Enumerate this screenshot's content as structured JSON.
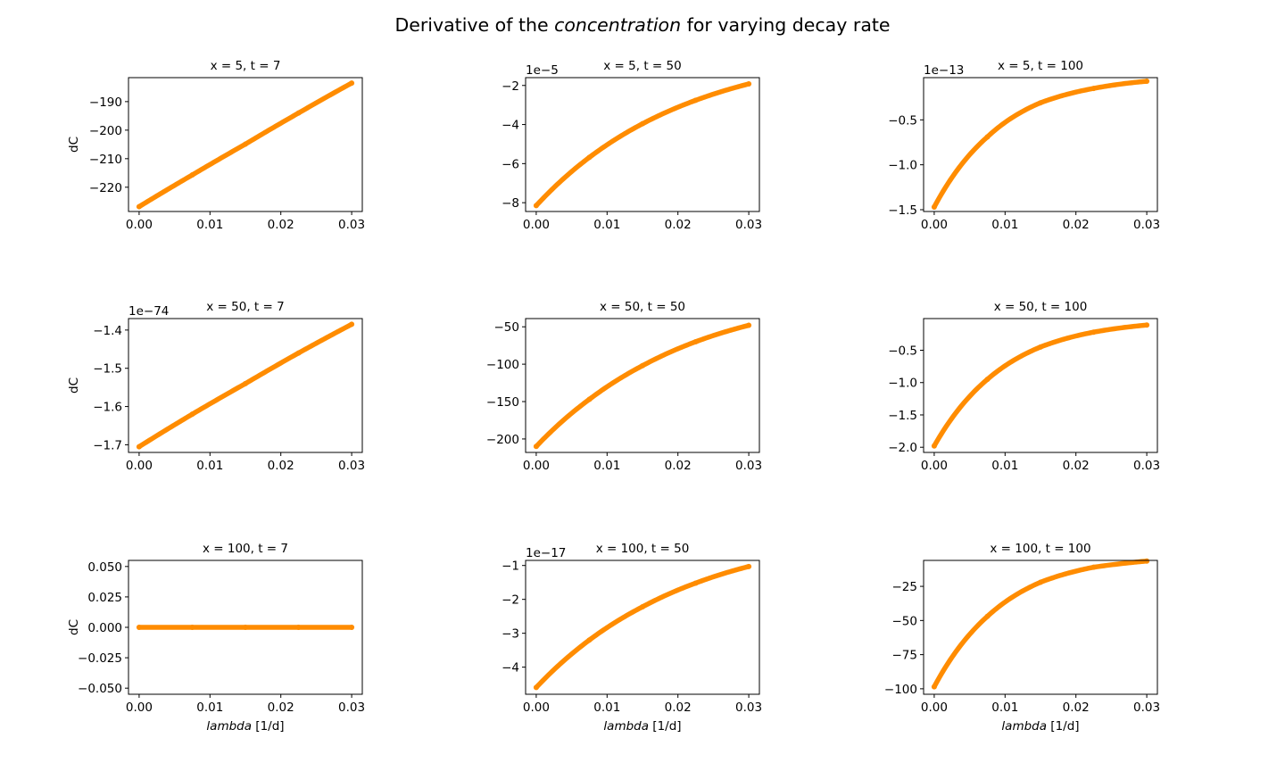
{
  "figure": {
    "title_prefix": "Derivative of the ",
    "title_italic": "concentration",
    "title_suffix": " for varying decay rate",
    "line_color": "#ff8c00"
  },
  "chart_data": [
    {
      "type": "line",
      "title": "x = 5, t = 7",
      "xlabel": "",
      "ylabel": "dC",
      "offset_text": "",
      "x_range": [
        0.0,
        0.03
      ],
      "x_ticks": [
        0.0,
        0.01,
        0.02,
        0.03
      ],
      "x_tick_labels": [
        "0.00",
        "0.01",
        "0.02",
        "0.03"
      ],
      "xlim": [
        -0.0015,
        0.0315
      ],
      "y_ticks": [
        -220,
        -210,
        -200,
        -190
      ],
      "y_tick_labels": [
        "−220",
        "−210",
        "−200",
        "−190"
      ],
      "ylim": [
        -228.5,
        -181.6
      ],
      "series": [
        {
          "x": [
            0.0,
            0.0075,
            0.015,
            0.0225,
            0.03
          ],
          "y": [
            -226.8,
            -215.7,
            -204.9,
            -194.0,
            -183.5
          ]
        }
      ],
      "grid": false
    },
    {
      "type": "line",
      "title": "x = 5, t = 50",
      "xlabel": "",
      "ylabel": "",
      "offset_text": "1e−5",
      "x_range": [
        0.0,
        0.03
      ],
      "x_ticks": [
        0.0,
        0.01,
        0.02,
        0.03
      ],
      "x_tick_labels": [
        "0.00",
        "0.01",
        "0.02",
        "0.03"
      ],
      "xlim": [
        -0.0015,
        0.0315
      ],
      "y_ticks": [
        -8,
        -6,
        -4,
        -2
      ],
      "y_tick_labels": [
        "−8",
        "−6",
        "−4",
        "−2"
      ],
      "ylim": [
        -8.45,
        -1.6
      ],
      "series": [
        {
          "x": [
            0.0,
            0.0075,
            0.015,
            0.0225,
            0.03
          ],
          "y": [
            -8.15,
            -5.68,
            -3.96,
            -2.76,
            -1.92
          ]
        }
      ],
      "grid": false
    },
    {
      "type": "line",
      "title": "x = 5, t = 100",
      "xlabel": "",
      "ylabel": "",
      "offset_text": "1e−13",
      "x_range": [
        0.0,
        0.03
      ],
      "x_ticks": [
        0.0,
        0.01,
        0.02,
        0.03
      ],
      "x_tick_labels": [
        "0.00",
        "0.01",
        "0.02",
        "0.03"
      ],
      "xlim": [
        -0.0015,
        0.0315
      ],
      "y_ticks": [
        -1.5,
        -1.0,
        -0.5
      ],
      "y_tick_labels": [
        "−1.5",
        "−1.0",
        "−0.5"
      ],
      "ylim": [
        -1.52,
        -0.03
      ],
      "series": [
        {
          "x": [
            0.0,
            0.0075,
            0.015,
            0.0225,
            0.03
          ],
          "y": [
            -1.47,
            -0.69,
            -0.31,
            -0.15,
            -0.07
          ]
        }
      ],
      "grid": false
    },
    {
      "type": "line",
      "title": "x = 50, t = 7",
      "xlabel": "",
      "ylabel": "dC",
      "offset_text": "1e−74",
      "x_range": [
        0.0,
        0.03
      ],
      "x_ticks": [
        0.0,
        0.01,
        0.02,
        0.03
      ],
      "x_tick_labels": [
        "0.00",
        "0.01",
        "0.02",
        "0.03"
      ],
      "xlim": [
        -0.0015,
        0.0315
      ],
      "y_ticks": [
        -1.7,
        -1.6,
        -1.5,
        -1.4
      ],
      "y_tick_labels": [
        "−1.7",
        "−1.6",
        "−1.5",
        "−1.4"
      ],
      "ylim": [
        -1.72,
        -1.37
      ],
      "series": [
        {
          "x": [
            0.0,
            0.0075,
            0.015,
            0.0225,
            0.03
          ],
          "y": [
            -1.705,
            -1.62,
            -1.54,
            -1.46,
            -1.385
          ]
        }
      ],
      "grid": false
    },
    {
      "type": "line",
      "title": "x = 50, t = 50",
      "xlabel": "",
      "ylabel": "",
      "offset_text": "",
      "x_range": [
        0.0,
        0.03
      ],
      "x_ticks": [
        0.0,
        0.01,
        0.02,
        0.03
      ],
      "x_tick_labels": [
        "0.00",
        "0.01",
        "0.02",
        "0.03"
      ],
      "xlim": [
        -0.0015,
        0.0315
      ],
      "y_ticks": [
        -200,
        -150,
        -100,
        -50
      ],
      "y_tick_labels": [
        "−200",
        "−150",
        "−100",
        "−50"
      ],
      "ylim": [
        -218,
        -39
      ],
      "series": [
        {
          "x": [
            0.0,
            0.0075,
            0.015,
            0.0225,
            0.03
          ],
          "y": [
            -210,
            -147,
            -102,
            -70,
            -48
          ]
        }
      ],
      "grid": false
    },
    {
      "type": "line",
      "title": "x = 50, t = 100",
      "xlabel": "",
      "ylabel": "",
      "offset_text": "",
      "x_range": [
        0.0,
        0.03
      ],
      "x_ticks": [
        0.0,
        0.01,
        0.02,
        0.03
      ],
      "x_tick_labels": [
        "0.00",
        "0.01",
        "0.02",
        "0.03"
      ],
      "xlim": [
        -0.0015,
        0.0315
      ],
      "y_ticks": [
        -2.0,
        -1.5,
        -1.0,
        -0.5
      ],
      "y_tick_labels": [
        "−2.0",
        "−1.5",
        "−1.0",
        "−0.5"
      ],
      "ylim": [
        -2.08,
        -0.01
      ],
      "series": [
        {
          "x": [
            0.0,
            0.0075,
            0.015,
            0.0225,
            0.03
          ],
          "y": [
            -1.98,
            -0.95,
            -0.45,
            -0.22,
            -0.11
          ]
        }
      ],
      "grid": false
    },
    {
      "type": "line",
      "title": "x = 100, t = 7",
      "xlabel": "lambda [1/d]",
      "ylabel": "dC",
      "offset_text": "",
      "x_range": [
        0.0,
        0.03
      ],
      "x_ticks": [
        0.0,
        0.01,
        0.02,
        0.03
      ],
      "x_tick_labels": [
        "0.00",
        "0.01",
        "0.02",
        "0.03"
      ],
      "xlim": [
        -0.0015,
        0.0315
      ],
      "y_ticks": [
        -0.05,
        -0.025,
        0.0,
        0.025,
        0.05
      ],
      "y_tick_labels": [
        "−0.050",
        "−0.025",
        "0.000",
        "0.025",
        "0.050"
      ],
      "ylim": [
        -0.055,
        0.055
      ],
      "series": [
        {
          "x": [
            0.0,
            0.0075,
            0.015,
            0.0225,
            0.03
          ],
          "y": [
            0.0,
            0.0,
            0.0,
            0.0,
            0.0
          ]
        }
      ],
      "grid": false
    },
    {
      "type": "line",
      "title": "x = 100, t = 50",
      "xlabel": "lambda [1/d]",
      "ylabel": "",
      "offset_text": "1e−17",
      "x_range": [
        0.0,
        0.03
      ],
      "x_ticks": [
        0.0,
        0.01,
        0.02,
        0.03
      ],
      "x_tick_labels": [
        "0.00",
        "0.01",
        "0.02",
        "0.03"
      ],
      "xlim": [
        -0.0015,
        0.0315
      ],
      "y_ticks": [
        -4,
        -3,
        -2,
        -1
      ],
      "y_tick_labels": [
        "−4",
        "−3",
        "−2",
        "−1"
      ],
      "ylim": [
        -4.8,
        -0.85
      ],
      "series": [
        {
          "x": [
            0.0,
            0.0075,
            0.015,
            0.0225,
            0.03
          ],
          "y": [
            -4.6,
            -3.2,
            -2.22,
            -1.52,
            -1.03
          ]
        }
      ],
      "grid": false
    },
    {
      "type": "line",
      "title": "x = 100, t = 100",
      "xlabel": "lambda [1/d]",
      "ylabel": "",
      "offset_text": "",
      "x_range": [
        0.0,
        0.03
      ],
      "x_ticks": [
        0.0,
        0.01,
        0.02,
        0.03
      ],
      "x_tick_labels": [
        "0.00",
        "0.01",
        "0.02",
        "0.03"
      ],
      "xlim": [
        -0.0015,
        0.0315
      ],
      "y_ticks": [
        -100,
        -75,
        -50,
        -25
      ],
      "y_tick_labels": [
        "−100",
        "−75",
        "−50",
        "−25"
      ],
      "ylim": [
        -104,
        -6
      ],
      "series": [
        {
          "x": [
            0.0,
            0.0075,
            0.015,
            0.0225,
            0.03
          ],
          "y": [
            -98.5,
            -47,
            -22,
            -11,
            -6.5
          ]
        }
      ],
      "grid": false
    }
  ]
}
